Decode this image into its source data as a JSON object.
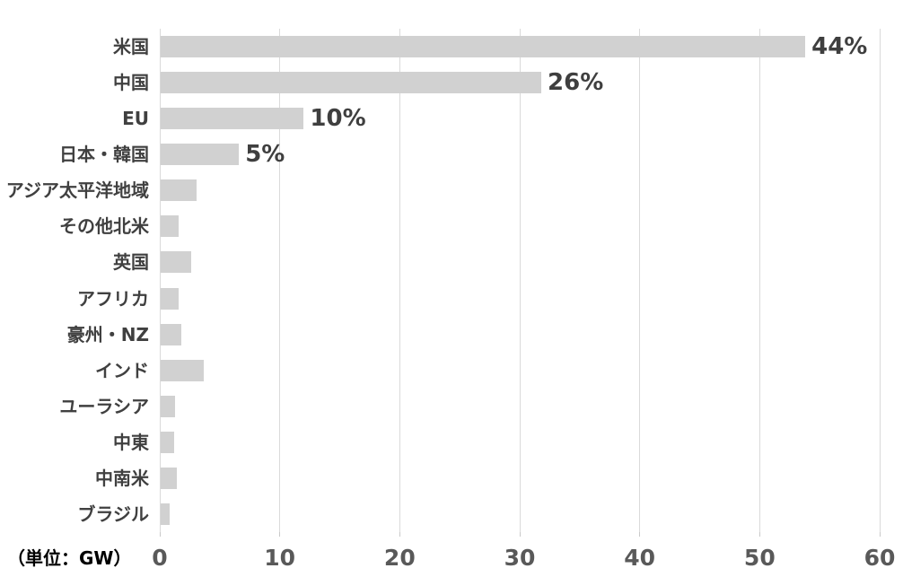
{
  "chart_data": {
    "type": "bar",
    "orientation": "horizontal",
    "title": "",
    "unit_label": "（単位：GW）",
    "unit": "GW",
    "categories": [
      "米国",
      "中国",
      "EU",
      "日本・韓国",
      "アジア太平洋地域",
      "その他北米",
      "英国",
      "アフリカ",
      "豪州・NZ",
      "インド",
      "ユーラシア",
      "中東",
      "中南米",
      "ブラジル"
    ],
    "values": [
      53.8,
      31.8,
      12.0,
      6.6,
      3.1,
      1.6,
      2.6,
      1.6,
      1.8,
      3.7,
      1.3,
      1.2,
      1.4,
      0.8
    ],
    "data_labels": [
      "44%",
      "26%",
      "10%",
      "5%",
      "",
      "",
      "",
      "",
      "",
      "",
      "",
      "",
      "",
      ""
    ],
    "xlabel": "",
    "ylabel": "",
    "xlim": [
      0,
      60
    ],
    "x_ticks": [
      0,
      10,
      20,
      30,
      40,
      50,
      60
    ],
    "grid": true,
    "legend": "none",
    "colors": {
      "bar_fill": "#d1d1d1",
      "gridline": "#dadada",
      "tick_mark": "#c9c9c9",
      "category_label": "#404040",
      "data_label": "#3f3f3f",
      "tick_label": "#595959",
      "unit_label": "#404040",
      "background": "#ffffff"
    }
  }
}
